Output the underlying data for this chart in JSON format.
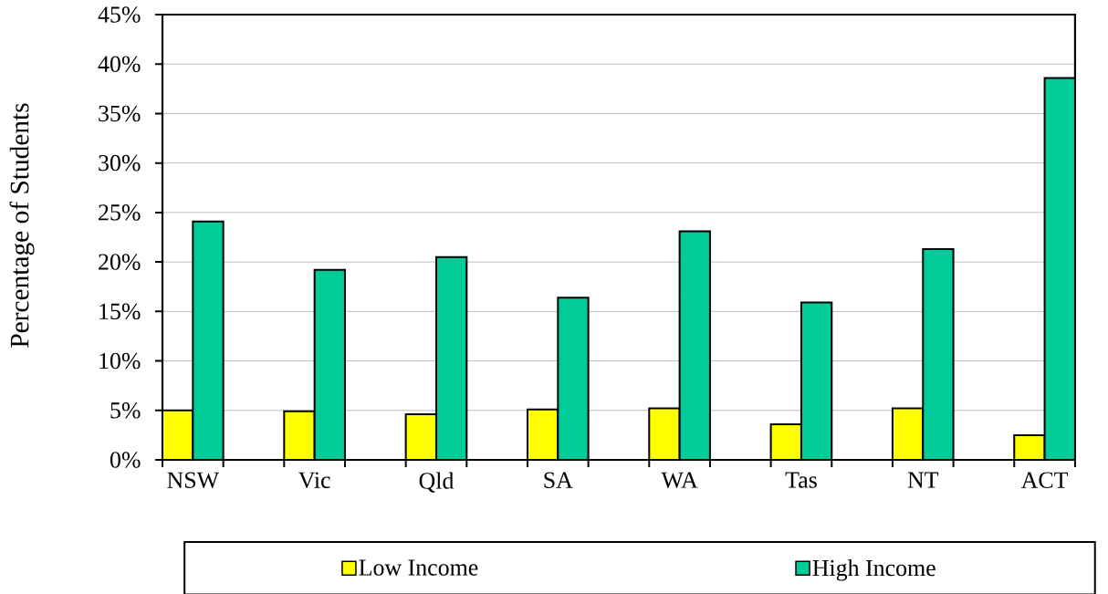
{
  "chart_data": {
    "type": "bar",
    "ylabel": "Percentage of Students",
    "categories": [
      "NSW",
      "Vic",
      "Qld",
      "SA",
      "WA",
      "Tas",
      "NT",
      "ACT"
    ],
    "series": [
      {
        "name": "Low Income",
        "color": "#ffff00",
        "values": [
          5.0,
          4.9,
          4.6,
          5.1,
          5.2,
          3.6,
          5.2,
          2.5
        ]
      },
      {
        "name": "High Income",
        "color": "#00cc99",
        "values": [
          24.1,
          19.2,
          20.5,
          16.4,
          23.1,
          15.9,
          21.3,
          38.6
        ]
      }
    ],
    "ylim": [
      0,
      45
    ],
    "yticks": [
      {
        "value": 0,
        "label": "0%"
      },
      {
        "value": 5,
        "label": "5%"
      },
      {
        "value": 10,
        "label": "10%"
      },
      {
        "value": 15,
        "label": "15%"
      },
      {
        "value": 20,
        "label": "20%"
      },
      {
        "value": 25,
        "label": "25%"
      },
      {
        "value": 30,
        "label": "30%"
      },
      {
        "value": 35,
        "label": "35%"
      },
      {
        "value": 40,
        "label": "40%"
      },
      {
        "value": 45,
        "label": "45%"
      }
    ],
    "grid": "y",
    "legend": "bottom"
  }
}
